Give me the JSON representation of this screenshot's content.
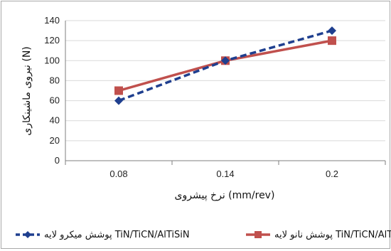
{
  "chart_data": {
    "type": "line",
    "categories": [
      "0.08",
      "0.14",
      "0.2"
    ],
    "series": [
      {
        "name": "پوشش میکرو لایه TiN/TiCN/AlTiSiN",
        "values": [
          60,
          100,
          130
        ],
        "color": "#1f3f8f",
        "line_style": "dashed",
        "marker": "diamond"
      },
      {
        "name": "پوشش نانو لایه TiN/TiCN/AlTiSiN",
        "values": [
          70,
          100,
          120
        ],
        "color": "#c0504d",
        "line_style": "solid",
        "marker": "square"
      }
    ],
    "title": "",
    "xlabel": "نرخ پیشروی (mm/rev)",
    "ylabel": "نیروی ماشینکاری (N)",
    "ylim": [
      0,
      140
    ],
    "yticks": [
      "0",
      "20",
      "40",
      "60",
      "80",
      "100",
      "120",
      "140"
    ],
    "grid": true,
    "legend_position": "bottom"
  }
}
